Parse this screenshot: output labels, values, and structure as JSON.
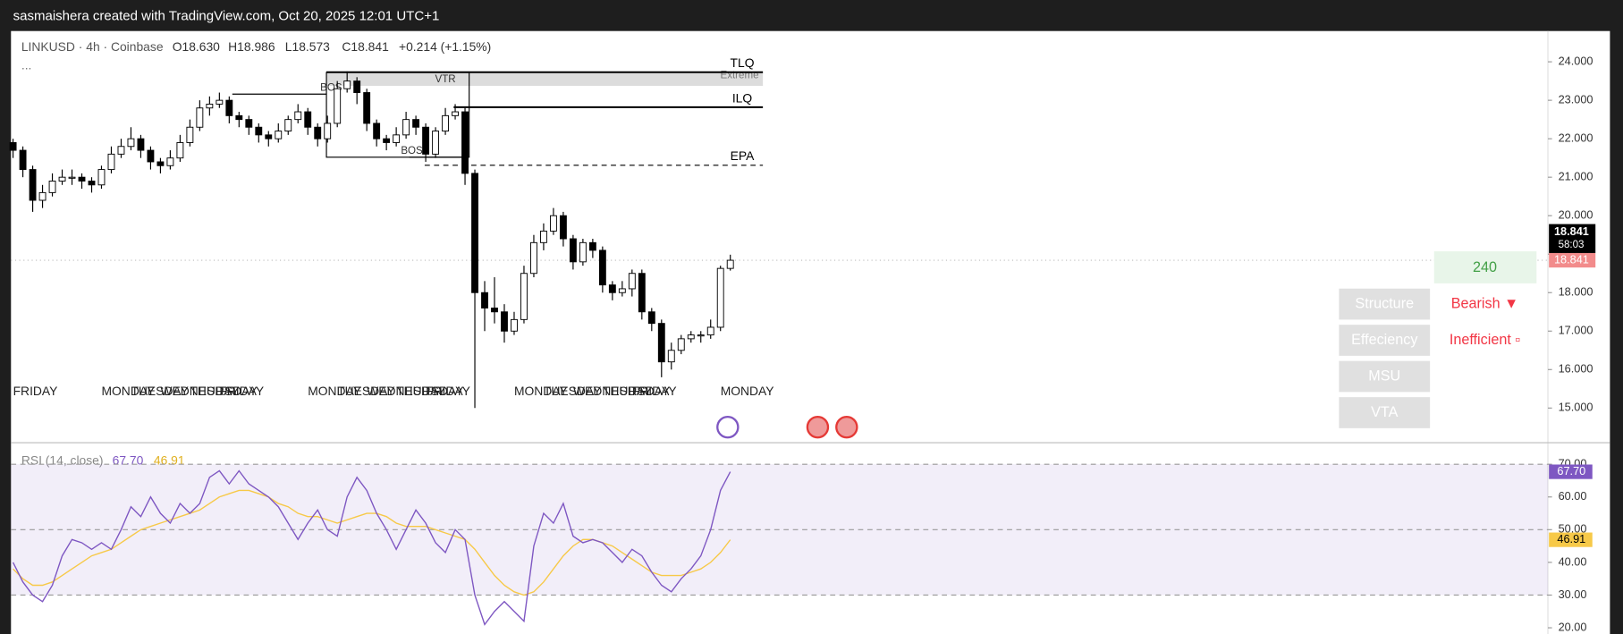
{
  "header": {
    "title": "sasmaishera created with TradingView.com, Oct 20, 2025 12:01 UTC+1"
  },
  "legend": {
    "symbol": "LINKUSD · 4h · Coinbase",
    "open": "O18.630",
    "high": "H18.986",
    "low": "L18.573",
    "close": "C18.841",
    "change": "+0.214 (+1.15%)",
    "more": "..."
  },
  "price_labels": {
    "last": "18.841",
    "countdown": "58:03",
    "prev": "18.841"
  },
  "panel": {
    "timeframe": "240",
    "rows": [
      {
        "label": "Structure",
        "status": "Bearish ▼"
      },
      {
        "label": "Effeciency",
        "status": "Inefficient ▫"
      },
      {
        "label": "MSU"
      },
      {
        "label": "VTA"
      }
    ]
  },
  "chart_data": [
    {
      "type": "candlestick",
      "categories": [
        "FRIDAY",
        null,
        null,
        null,
        null,
        null,
        null,
        null,
        null,
        "MONDAY",
        null,
        null,
        "TUESDAY",
        null,
        null,
        "WEDNESDAY",
        null,
        null,
        "THURSDAY",
        null,
        null,
        "FRIDAY",
        null,
        null,
        null,
        null,
        null,
        null,
        null,
        null,
        "MONDAY",
        null,
        null,
        "TUESDAY",
        null,
        null,
        "WEDNESDAY",
        null,
        null,
        "THURSDAY",
        null,
        null,
        "FRIDAY",
        null,
        null,
        null,
        null,
        null,
        null,
        null,
        null,
        "MONDAY",
        null,
        null,
        "TUESDAY",
        null,
        null,
        "WEDNESDAY",
        null,
        null,
        "THURSDAY",
        null,
        null,
        "FRIDAY",
        null,
        null,
        null,
        null,
        null,
        null,
        null,
        null,
        "MONDAY",
        null
      ],
      "open": [
        21.9,
        21.7,
        21.2,
        20.4,
        20.6,
        20.9,
        21.0,
        21.0,
        20.9,
        20.8,
        21.2,
        21.6,
        21.8,
        22.0,
        21.7,
        21.4,
        21.3,
        21.5,
        21.9,
        22.3,
        22.8,
        22.9,
        23.0,
        22.6,
        22.5,
        22.3,
        22.1,
        22.0,
        22.2,
        22.5,
        22.7,
        22.3,
        22.0,
        22.4,
        23.3,
        23.5,
        23.2,
        22.4,
        22.0,
        21.9,
        22.1,
        22.5,
        22.3,
        21.6,
        22.2,
        22.6,
        22.7,
        21.1,
        18.0,
        17.6,
        17.5,
        17.0,
        17.3,
        18.5,
        19.3,
        19.6,
        20.0,
        19.4,
        18.8,
        19.3,
        19.1,
        18.2,
        18.0,
        18.1,
        18.5,
        17.5,
        17.2,
        16.2,
        16.5,
        16.8,
        16.9,
        16.9,
        17.1,
        18.63
      ],
      "high": [
        22.0,
        21.8,
        21.3,
        20.8,
        21.1,
        21.2,
        21.2,
        21.1,
        21.0,
        21.3,
        21.8,
        22.0,
        22.3,
        22.1,
        21.8,
        21.5,
        21.7,
        22.1,
        22.5,
        23.0,
        23.1,
        23.2,
        23.1,
        22.7,
        22.6,
        22.4,
        22.2,
        22.4,
        22.6,
        22.9,
        22.8,
        22.4,
        22.6,
        23.5,
        23.75,
        23.6,
        23.3,
        22.5,
        22.1,
        22.3,
        22.7,
        22.6,
        22.4,
        22.3,
        22.8,
        22.9,
        22.8,
        21.2,
        18.3,
        18.4,
        17.7,
        17.5,
        18.7,
        19.5,
        19.8,
        20.2,
        20.1,
        19.5,
        19.4,
        19.4,
        19.2,
        18.3,
        18.3,
        18.6,
        18.6,
        17.6,
        17.3,
        16.7,
        16.9,
        17.0,
        17.0,
        17.3,
        18.7,
        18.986
      ],
      "low": [
        21.5,
        21.0,
        20.1,
        20.2,
        20.5,
        20.8,
        20.8,
        20.7,
        20.6,
        20.7,
        21.1,
        21.5,
        21.7,
        21.5,
        21.2,
        21.1,
        21.2,
        21.4,
        21.8,
        22.2,
        22.6,
        22.8,
        22.4,
        22.3,
        22.1,
        21.9,
        21.8,
        21.9,
        22.1,
        22.4,
        22.1,
        21.8,
        21.9,
        22.3,
        23.2,
        22.9,
        22.2,
        21.8,
        21.7,
        21.8,
        22.0,
        22.1,
        21.4,
        21.5,
        22.1,
        22.5,
        20.8,
        15.0,
        17.0,
        17.2,
        16.7,
        16.9,
        17.2,
        18.4,
        19.1,
        19.5,
        19.2,
        18.6,
        18.7,
        18.9,
        18.0,
        17.8,
        17.9,
        17.9,
        17.3,
        17.0,
        15.8,
        16.0,
        16.4,
        16.7,
        16.7,
        16.8,
        17.0,
        18.573
      ],
      "close": [
        21.7,
        21.2,
        20.4,
        20.6,
        20.9,
        21.0,
        21.0,
        20.9,
        20.8,
        21.2,
        21.6,
        21.8,
        22.0,
        21.7,
        21.4,
        21.3,
        21.5,
        21.9,
        22.3,
        22.8,
        22.9,
        23.0,
        22.6,
        22.5,
        22.3,
        22.1,
        22.0,
        22.2,
        22.5,
        22.7,
        22.3,
        22.0,
        22.4,
        23.3,
        23.5,
        23.2,
        22.4,
        22.0,
        21.9,
        22.1,
        22.5,
        22.3,
        21.6,
        22.2,
        22.6,
        22.7,
        21.1,
        18.0,
        17.6,
        17.5,
        17.0,
        17.3,
        18.5,
        19.3,
        19.6,
        20.0,
        19.4,
        18.8,
        19.3,
        19.1,
        18.2,
        18.0,
        18.1,
        18.5,
        17.5,
        17.2,
        16.2,
        16.5,
        16.8,
        16.9,
        16.9,
        17.1,
        18.63,
        18.841
      ],
      "up_color": "#ffffff",
      "down_color": "#000000",
      "ylim": [
        14.1,
        24.8
      ],
      "yticks": [
        {
          "value": 15,
          "label": "15.000"
        },
        {
          "value": 16,
          "label": "16.000"
        },
        {
          "value": 17,
          "label": "17.000"
        },
        {
          "value": 18,
          "label": "18.000"
        },
        {
          "value": 19,
          "label": "19.000"
        },
        {
          "value": 20,
          "label": "20.000"
        },
        {
          "value": 21,
          "label": "21.000"
        },
        {
          "value": 22,
          "label": "22.000"
        },
        {
          "value": 23,
          "label": "23.000"
        },
        {
          "value": 24,
          "label": "24.000"
        }
      ],
      "levels": [
        {
          "label": "TLQ",
          "value": 23.73
        },
        {
          "label": "ILQ",
          "value": 22.82
        },
        {
          "label": "EPA",
          "value": 21.31,
          "dashed": true
        }
      ],
      "annotations": [
        "VTR",
        "Extreme",
        "BOS",
        "BOS"
      ]
    },
    {
      "type": "line",
      "series": [
        {
          "name": "RSI (14, close)",
          "color": "#7e57c2",
          "values": [
            40,
            34,
            30,
            28,
            33,
            42,
            47,
            46,
            44,
            46,
            44,
            50,
            57,
            54,
            60,
            55,
            52,
            58,
            55,
            58,
            66,
            68,
            64,
            68,
            64,
            62,
            60,
            57,
            52,
            47,
            52,
            56,
            50,
            48,
            60,
            66,
            62,
            55,
            50,
            44,
            50,
            56,
            52,
            46,
            43,
            50,
            47,
            30,
            21,
            25,
            28,
            25,
            22,
            45,
            55,
            52,
            58,
            48,
            46,
            47,
            46,
            43,
            40,
            44,
            42,
            37,
            33,
            31,
            35,
            38,
            42,
            50,
            62,
            67.7
          ]
        },
        {
          "color": "#f7c948",
          "values": [
            38,
            35,
            33,
            33,
            34,
            36,
            38,
            40,
            42,
            43,
            44,
            46,
            48,
            50,
            51,
            52,
            53,
            54,
            55,
            56,
            58,
            60,
            61,
            62,
            62,
            61,
            60,
            58,
            57,
            55,
            54,
            54,
            53,
            52,
            53,
            54,
            55,
            55,
            54,
            52,
            51,
            51,
            51,
            50,
            49,
            48,
            47,
            44,
            40,
            36,
            33,
            31,
            30,
            31,
            34,
            38,
            42,
            45,
            47,
            47,
            46,
            45,
            43,
            41,
            39,
            37,
            36,
            36,
            36,
            37,
            38,
            40,
            43,
            46.91
          ]
        }
      ],
      "legend_values": [
        "67.70",
        "46.91"
      ],
      "band": [
        30,
        70
      ],
      "levels": [
        30,
        50,
        70
      ],
      "ylim": [
        18.1,
        76.6
      ],
      "yticks": [
        {
          "value": 20,
          "label": "20.00"
        },
        {
          "value": 30,
          "label": "30.00"
        },
        {
          "value": 40,
          "label": "40.00"
        },
        {
          "value": 50,
          "label": "50.00"
        },
        {
          "value": 60,
          "label": "60.00"
        },
        {
          "value": 70,
          "label": "70.00"
        }
      ]
    }
  ]
}
